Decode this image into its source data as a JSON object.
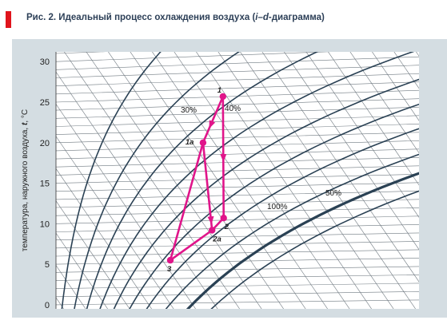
{
  "figure": {
    "title_prefix": "Рис. 2. Идеальный процесс охлаждения воздуха (",
    "title_i": "i",
    "title_dash": "–",
    "title_d": "d",
    "title_suffix": "-диаграмма)"
  },
  "colors": {
    "accent": "#e0141c",
    "panel_bg": "#d4dde2",
    "plot_bg": "#ffffff",
    "grid": "#6f7980",
    "curve": "#2a4154",
    "process": "#e0158a",
    "title": "#2c3f57"
  },
  "chart_data": {
    "type": "line",
    "title": "Рис. 2. Идеальный процесс охлаждения воздуха (i–d-диаграмма)",
    "xlabel": "",
    "ylabel_prefix": "температура, наружного воздуха, ",
    "ylabel_var": "t",
    "ylabel_unit": ", °C",
    "ylim": [
      0,
      32
    ],
    "y_ticks": [
      "0",
      "5",
      "10",
      "15",
      "20",
      "25",
      "30"
    ],
    "grid": true,
    "rh_labels": [
      "30%",
      "40%",
      "50%",
      "100%"
    ],
    "points": [
      {
        "name": "1",
        "x": 0.46,
        "y": 25.7
      },
      {
        "name": "1a",
        "x": 0.405,
        "y": 20.0
      },
      {
        "name": "2",
        "x": 0.462,
        "y": 10.7
      },
      {
        "name": "2a",
        "x": 0.43,
        "y": 9.2
      },
      {
        "name": "3",
        "x": 0.315,
        "y": 5.5
      }
    ],
    "process_paths": [
      [
        "1",
        "1a",
        "3",
        "2a",
        "2",
        "1"
      ],
      [
        "1a",
        "2a"
      ]
    ]
  }
}
